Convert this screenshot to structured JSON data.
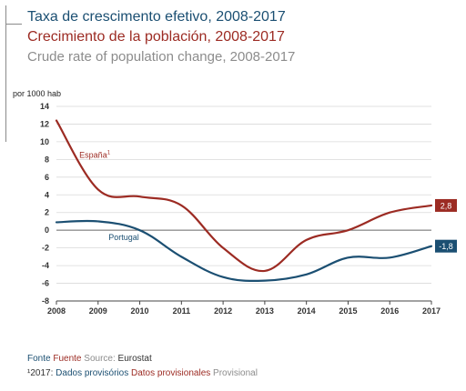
{
  "titles": {
    "pt": "Taxa de crescimento efetivo, 2008-2017",
    "es": "Crecimiento de la población, 2008-2017",
    "en": "Crude rate of population change, 2008-2017"
  },
  "footer": {
    "source_pt": "Fonte",
    "source_es": "Fuente",
    "source_en": "Source:",
    "source_name": "Eurostat",
    "note_mark": "¹",
    "note_year": "2017:",
    "note_pt": "Dados provisórios",
    "note_es": "Datos provisionales",
    "note_en": "Provisional"
  },
  "colors": {
    "portugal": "#1b4f72",
    "espana": "#9c2b23",
    "grey_text": "#8c8c8c"
  },
  "chart_data": {
    "type": "line",
    "ylabel": "por 1000 hab",
    "ylim": [
      -8,
      14
    ],
    "yticks": [
      14,
      12,
      10,
      8,
      6,
      4,
      2,
      0,
      -2,
      -4,
      -6,
      -8
    ],
    "x": [
      2008,
      2009,
      2010,
      2011,
      2012,
      2013,
      2014,
      2015,
      2016,
      2017
    ],
    "grid": true,
    "series": [
      {
        "name": "España",
        "name_sup": "1",
        "color": "#9c2b23",
        "values": [
          12.4,
          4.6,
          3.8,
          2.8,
          -2.0,
          -4.6,
          -1.1,
          0.0,
          2.0,
          2.8
        ],
        "end_label": "2,8"
      },
      {
        "name": "Portugal",
        "color": "#1b4f72",
        "values": [
          0.9,
          1.0,
          0.0,
          -3.0,
          -5.3,
          -5.7,
          -5.0,
          -3.1,
          -3.1,
          -1.8
        ],
        "end_label": "-1,8"
      }
    ]
  }
}
